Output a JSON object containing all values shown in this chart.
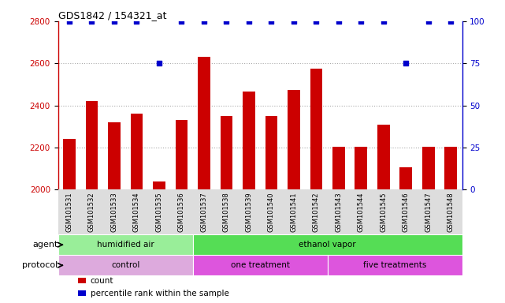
{
  "title": "GDS1842 / 154321_at",
  "samples": [
    "GSM101531",
    "GSM101532",
    "GSM101533",
    "GSM101534",
    "GSM101535",
    "GSM101536",
    "GSM101537",
    "GSM101538",
    "GSM101539",
    "GSM101540",
    "GSM101541",
    "GSM101542",
    "GSM101543",
    "GSM101544",
    "GSM101545",
    "GSM101546",
    "GSM101547",
    "GSM101548"
  ],
  "counts": [
    2240,
    2420,
    2320,
    2360,
    2040,
    2330,
    2630,
    2350,
    2465,
    2350,
    2475,
    2575,
    2205,
    2205,
    2310,
    2105,
    2205,
    2205
  ],
  "percentile_ranks": [
    100,
    100,
    100,
    100,
    75,
    100,
    100,
    100,
    100,
    100,
    100,
    100,
    100,
    100,
    100,
    75,
    100,
    100
  ],
  "bar_color": "#cc0000",
  "dot_color": "#0000cc",
  "ylim_left": [
    2000,
    2800
  ],
  "ylim_right": [
    0,
    100
  ],
  "yticks_left": [
    2000,
    2200,
    2400,
    2600,
    2800
  ],
  "yticks_right": [
    0,
    25,
    50,
    75,
    100
  ],
  "agent_groups": [
    {
      "label": "humidified air",
      "start": 0,
      "end": 6,
      "color": "#99ee99"
    },
    {
      "label": "ethanol vapor",
      "start": 6,
      "end": 18,
      "color": "#55dd55"
    }
  ],
  "protocol_groups": [
    {
      "label": "control",
      "start": 0,
      "end": 6,
      "color": "#ddaadd"
    },
    {
      "label": "one treatment",
      "start": 6,
      "end": 12,
      "color": "#dd55dd"
    },
    {
      "label": "five treatments",
      "start": 12,
      "end": 18,
      "color": "#dd55dd"
    }
  ],
  "legend_items": [
    {
      "label": "count",
      "color": "#cc0000"
    },
    {
      "label": "percentile rank within the sample",
      "color": "#0000cc"
    }
  ],
  "grid_color": "#aaaaaa",
  "background_color": "#ffffff",
  "tick_label_color_left": "#cc0000",
  "tick_label_color_right": "#0000cc",
  "xlabel_bg": "#dddddd",
  "agent_label_color": "#000000",
  "protocol_label_color": "#000000"
}
